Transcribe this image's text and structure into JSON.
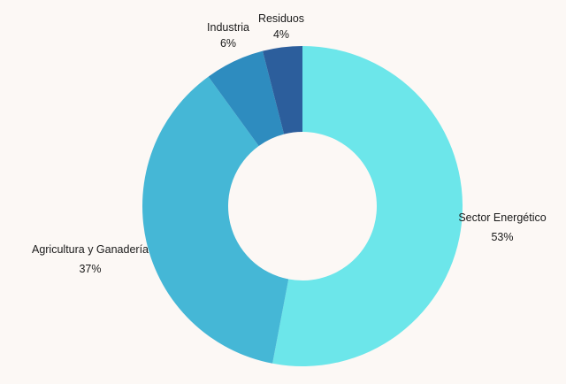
{
  "chart_data": {
    "type": "pie",
    "variant": "donut",
    "title": "",
    "categories": [
      "Sector Energético",
      "Agricultura y Ganadería",
      "Industria",
      "Residuos"
    ],
    "values": [
      53,
      37,
      6,
      4
    ],
    "value_labels": [
      "53%",
      "37%",
      "6%",
      "4%"
    ],
    "colors": [
      "#6ce6ea",
      "#45b7d6",
      "#2e8cbf",
      "#2c5e9c"
    ],
    "start_angle_deg": 0,
    "direction": "clockwise",
    "legend": "none"
  }
}
